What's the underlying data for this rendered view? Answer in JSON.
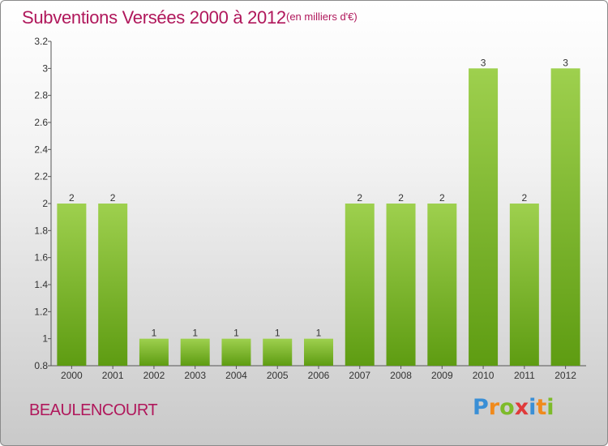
{
  "header": {
    "title": "Subventions Versées 2000 à 2012",
    "subtitle": "(en milliers d'€)"
  },
  "footer": {
    "commune": "BEAULENCOURT",
    "logo_letters": [
      {
        "char": "P",
        "color": "#3a8fd6"
      },
      {
        "char": "r",
        "color": "#f08a1c"
      },
      {
        "char": "o",
        "color": "#7dbb2a"
      },
      {
        "char": "x",
        "color": "#e03a3a"
      },
      {
        "char": "i",
        "color": "#3a8fd6"
      },
      {
        "char": "t",
        "color": "#f08a1c"
      },
      {
        "char": "i",
        "color": "#7dbb2a"
      }
    ]
  },
  "chart_data": {
    "type": "bar",
    "categories": [
      "2000",
      "2001",
      "2002",
      "2003",
      "2004",
      "2005",
      "2006",
      "2007",
      "2008",
      "2009",
      "2010",
      "2011",
      "2012"
    ],
    "values": [
      2,
      2,
      1,
      1,
      1,
      1,
      1,
      2,
      2,
      2,
      3,
      2,
      3
    ],
    "data_labels": [
      "2",
      "2",
      "1",
      "1",
      "1",
      "1",
      "1",
      "2",
      "2",
      "2",
      "3",
      "2",
      "3"
    ],
    "y_ticks": [
      0.8,
      1,
      1.2,
      1.4,
      1.6,
      1.8,
      2,
      2.2,
      2.4,
      2.6,
      2.8,
      3,
      3.2
    ],
    "y_tick_labels": [
      "0.8",
      "1",
      "1.2",
      "1.4",
      "1.6",
      "1.8",
      "2",
      "2.2",
      "2.4",
      "2.6",
      "2.8",
      "3",
      "3.2"
    ],
    "ylim": [
      0.8,
      3.2
    ],
    "grid": false,
    "bar_color_top": "#9ed04e",
    "bar_color_bottom": "#5e9c12"
  }
}
